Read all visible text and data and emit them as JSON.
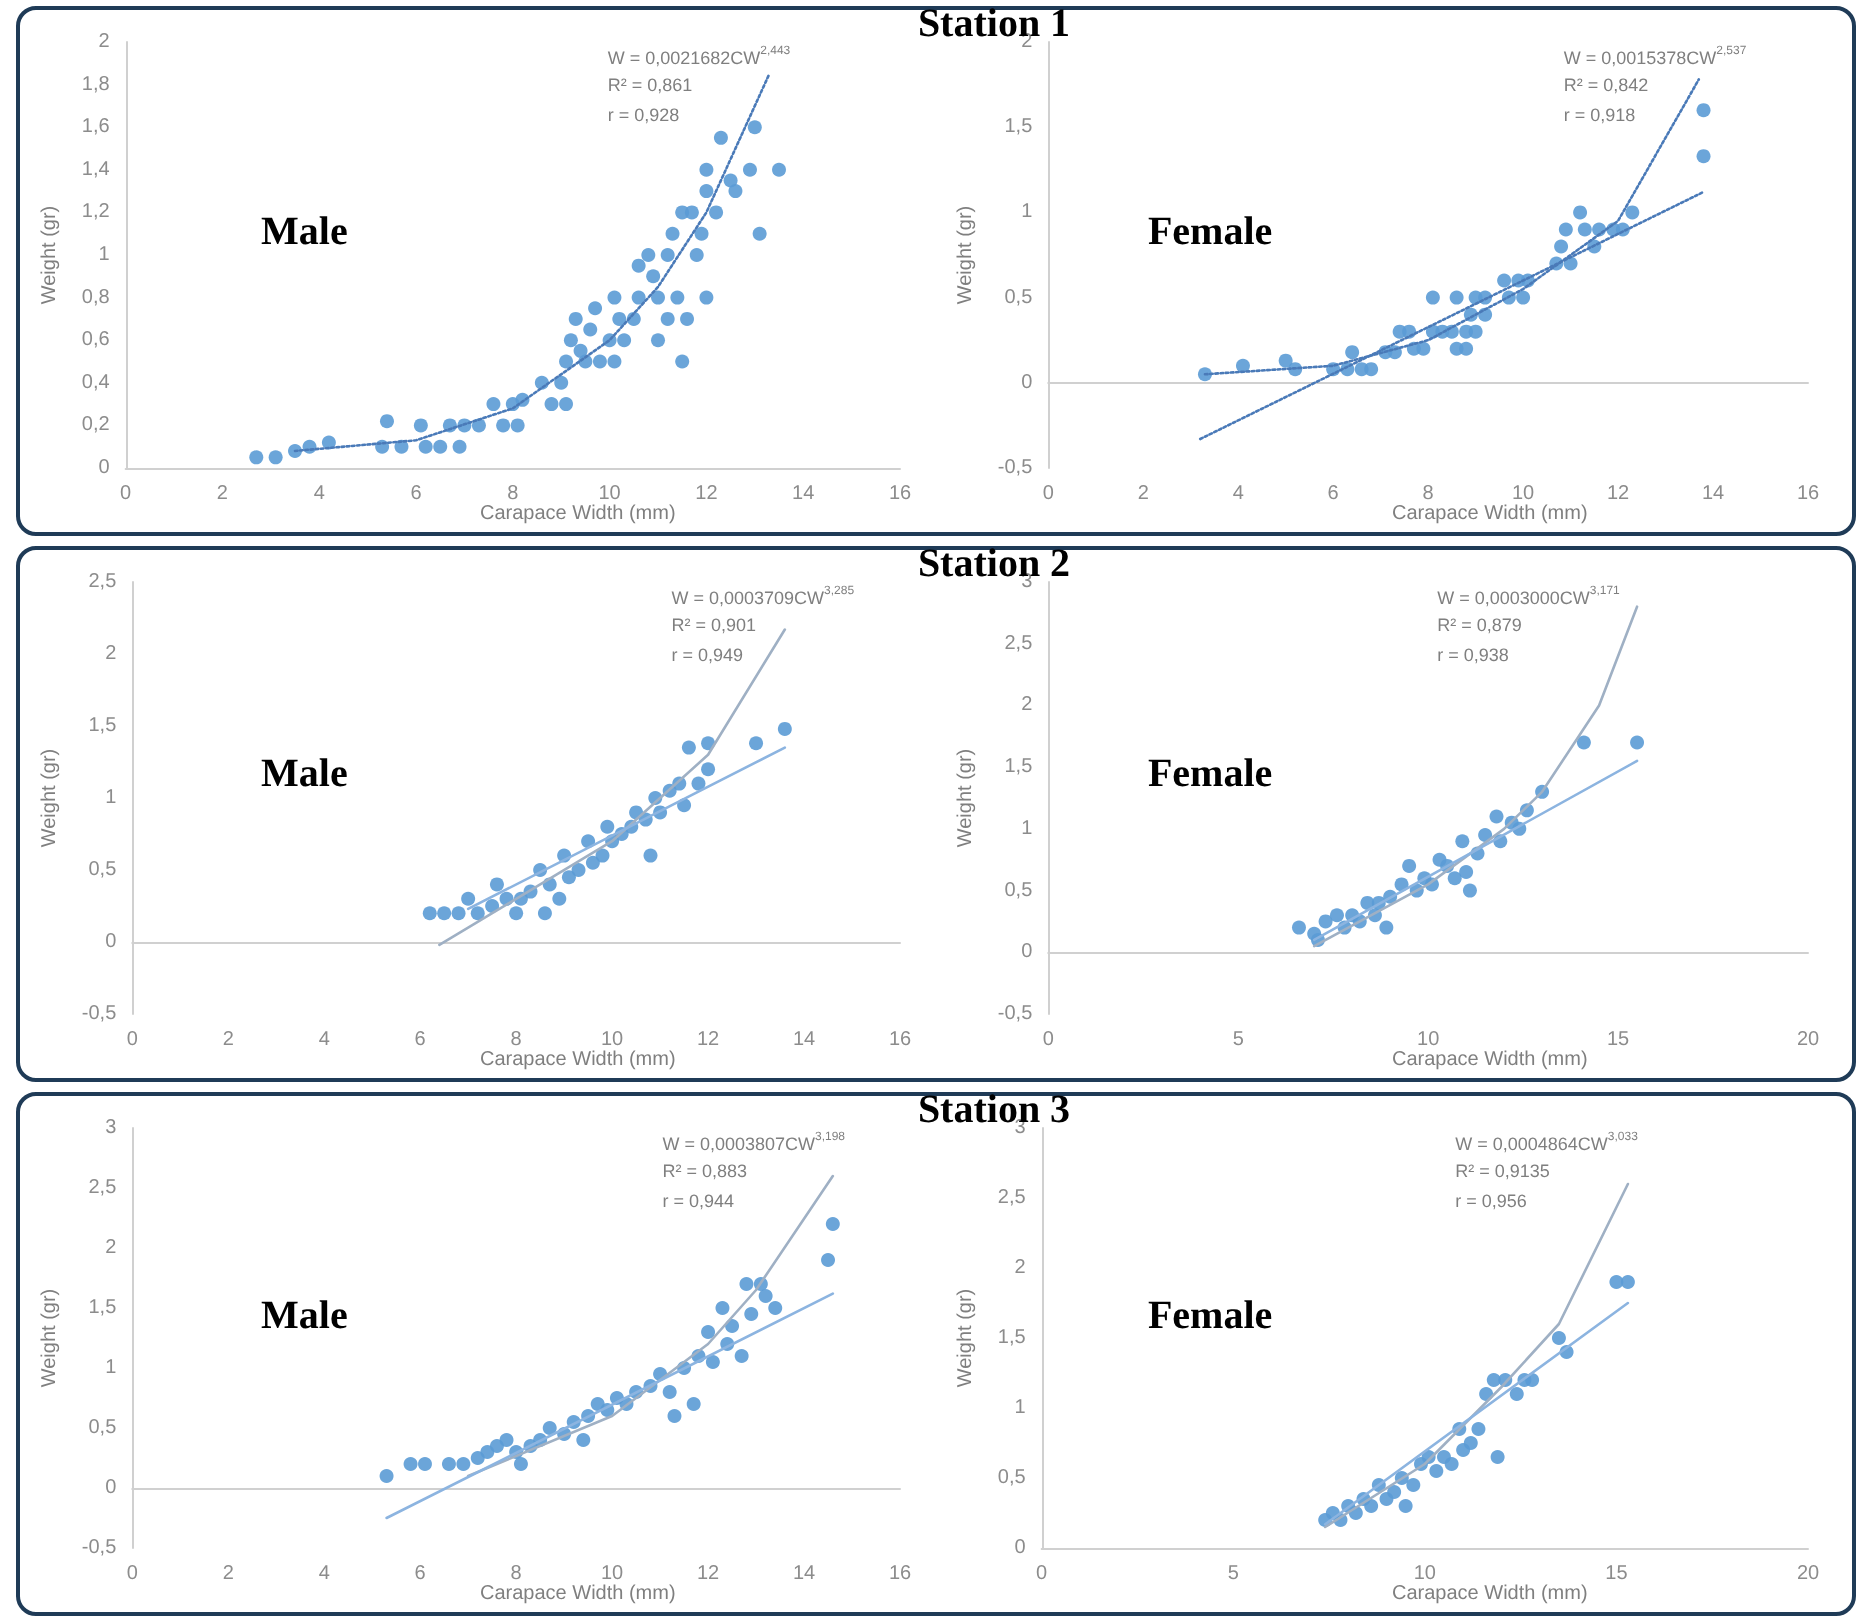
{
  "chart_data": [
    {
      "type": "scatter",
      "title": "Station 1",
      "xlabel": "Carapace Width (mm)",
      "ylabel": "Weight (gr)",
      "grid": false,
      "xlim": [
        0,
        16
      ],
      "xticks": [
        0,
        2,
        4,
        6,
        8,
        10,
        12,
        14,
        16
      ],
      "ylim": [
        0,
        2
      ],
      "yticks": [
        0,
        {
          "value": 0.2,
          "label": "0,2"
        },
        {
          "value": 0.4,
          "label": "0,4"
        },
        {
          "value": 0.6,
          "label": "0,6"
        },
        {
          "value": 0.8,
          "label": "0,8"
        },
        1,
        {
          "value": 1.2,
          "label": "1,2"
        },
        {
          "value": 1.4,
          "label": "1,4"
        },
        {
          "value": 1.6,
          "label": "1,6"
        },
        {
          "value": 1.8,
          "label": "1,8"
        },
        2
      ],
      "annotations": [
        "Male",
        "W = 0,0021682CW$^{2,443}$",
        "R² = 0,861",
        "r = 0,928"
      ],
      "series": [
        {
          "color": "#5b9bd5",
          "marker": "circle",
          "x": [
            2.7,
            3.1,
            3.5,
            3.8,
            4.2,
            5.3,
            5.4,
            5.7,
            6.1,
            6.2,
            6.5,
            6.7,
            6.9,
            7.0,
            7.3,
            7.6,
            7.8,
            8.0,
            8.1,
            8.2,
            8.6,
            8.8,
            9.0,
            9.1,
            9.1,
            9.2,
            9.3,
            9.4,
            9.5,
            9.6,
            9.7,
            9.8,
            10.0,
            10.1,
            10.2,
            10.1,
            10.3,
            10.5,
            10.6,
            10.6,
            10.8,
            10.9,
            11.0,
            11.0,
            11.2,
            11.2,
            11.3,
            11.4,
            11.5,
            11.5,
            11.6,
            11.7,
            11.8,
            11.9,
            12.0,
            12.0,
            12.0,
            12.2,
            12.3,
            12.5,
            12.6,
            12.9,
            13.0,
            13.1,
            13.5
          ],
          "values": [
            0.05,
            0.05,
            0.08,
            0.1,
            0.12,
            0.1,
            0.22,
            0.1,
            0.2,
            0.1,
            0.1,
            0.2,
            0.1,
            0.2,
            0.2,
            0.3,
            0.2,
            0.3,
            0.2,
            0.32,
            0.4,
            0.3,
            0.4,
            0.3,
            0.5,
            0.6,
            0.7,
            0.55,
            0.5,
            0.65,
            0.75,
            0.5,
            0.6,
            0.8,
            0.7,
            0.5,
            0.6,
            0.7,
            0.8,
            0.95,
            1.0,
            0.9,
            0.6,
            0.8,
            0.7,
            1.0,
            1.1,
            0.8,
            0.5,
            1.2,
            0.7,
            1.2,
            1.0,
            1.1,
            1.3,
            1.4,
            0.8,
            1.2,
            1.55,
            1.35,
            1.3,
            1.4,
            1.6,
            1.1,
            1.4
          ]
        },
        {
          "type": "line",
          "color": "#4a7ab8",
          "line_style": "dotted",
          "x": [
            3.5,
            6,
            8,
            10,
            11,
            12,
            13.3
          ],
          "values": [
            0.08,
            0.13,
            0.28,
            0.6,
            0.85,
            1.2,
            1.85
          ]
        }
      ]
    },
    {
      "type": "scatter",
      "xlabel": "Carapace Width (mm)",
      "ylabel": "Weight (gr)",
      "xlim": [
        0,
        16
      ],
      "xticks": [
        0,
        2,
        4,
        6,
        8,
        10,
        12,
        14,
        16
      ],
      "ylim": [
        -0.5,
        2
      ],
      "yticks": [
        {
          "value": -0.5,
          "label": "-0,5"
        },
        0,
        {
          "value": 0.5,
          "label": "0,5"
        },
        1,
        {
          "value": 1.5,
          "label": "1,5"
        },
        2
      ],
      "annotations": [
        "Female",
        "W = 0,0015378CW$^{2,537}$",
        "R² = 0,842",
        "r = 0,918"
      ],
      "series": [
        {
          "color": "#5b9bd5",
          "marker": "circle",
          "x": [
            3.3,
            4.1,
            5.0,
            5.2,
            6.0,
            6.3,
            6.4,
            6.6,
            6.8,
            7.1,
            7.3,
            7.4,
            7.6,
            7.7,
            7.9,
            8.1,
            8.1,
            8.3,
            8.5,
            8.6,
            8.6,
            8.8,
            8.8,
            8.9,
            9.0,
            9.0,
            9.2,
            9.2,
            9.6,
            9.7,
            9.9,
            10.0,
            10.1,
            10.7,
            10.8,
            10.9,
            11.0,
            11.2,
            11.3,
            11.5,
            11.6,
            11.9,
            12.1,
            12.3,
            13.8,
            13.8
          ],
          "values": [
            0.05,
            0.1,
            0.13,
            0.08,
            0.08,
            0.08,
            0.18,
            0.08,
            0.08,
            0.18,
            0.18,
            0.3,
            0.3,
            0.2,
            0.2,
            0.5,
            0.3,
            0.3,
            0.3,
            0.5,
            0.2,
            0.2,
            0.3,
            0.4,
            0.5,
            0.3,
            0.5,
            0.4,
            0.6,
            0.5,
            0.6,
            0.5,
            0.6,
            0.7,
            0.8,
            0.9,
            0.7,
            1.0,
            0.9,
            0.8,
            0.9,
            0.9,
            0.9,
            1.0,
            1.6,
            1.33
          ]
        },
        {
          "type": "line",
          "color": "#4a7ab8",
          "line_style": "dotted",
          "x": [
            3.3,
            6,
            8,
            10,
            12,
            13.7
          ],
          "values": [
            0.05,
            0.1,
            0.25,
            0.55,
            0.95,
            1.78
          ]
        },
        {
          "type": "line",
          "color": "#4a7ab8",
          "line_style": "dotted",
          "x": [
            3.2,
            13.8
          ],
          "values": [
            -0.33,
            1.12
          ]
        }
      ]
    },
    {
      "type": "scatter",
      "title": "Station 2",
      "xlabel": "Carapace Width (mm)",
      "ylabel": "Weight (gr)",
      "xlim": [
        0,
        16
      ],
      "xticks": [
        0,
        2,
        4,
        6,
        8,
        10,
        12,
        14,
        16
      ],
      "ylim": [
        -0.5,
        2.5
      ],
      "yticks": [
        {
          "value": -0.5,
          "label": "-0,5"
        },
        0,
        {
          "value": 0.5,
          "label": "0,5"
        },
        1,
        {
          "value": 1.5,
          "label": "1,5"
        },
        2,
        {
          "value": 2.5,
          "label": "2,5"
        }
      ],
      "annotations": [
        "Male",
        "W = 0,0003709CW$^{3,285}$",
        "R² = 0,901",
        "r = 0,949"
      ],
      "series": [
        {
          "color": "#5b9bd5",
          "marker": "circle",
          "x": [
            6.2,
            6.5,
            6.8,
            7.0,
            7.2,
            7.5,
            7.6,
            7.8,
            8.0,
            8.1,
            8.3,
            8.5,
            8.6,
            8.7,
            8.9,
            9.0,
            9.1,
            9.3,
            9.5,
            9.6,
            9.8,
            9.9,
            10.0,
            10.2,
            10.4,
            10.5,
            10.7,
            10.8,
            10.9,
            11.0,
            11.2,
            11.4,
            11.5,
            11.6,
            11.8,
            12.0,
            12.0,
            13.0,
            13.6
          ],
          "values": [
            0.2,
            0.2,
            0.2,
            0.3,
            0.2,
            0.25,
            0.4,
            0.3,
            0.2,
            0.3,
            0.35,
            0.5,
            0.2,
            0.4,
            0.3,
            0.6,
            0.45,
            0.5,
            0.7,
            0.55,
            0.6,
            0.8,
            0.7,
            0.75,
            0.8,
            0.9,
            0.85,
            0.6,
            1.0,
            0.9,
            1.05,
            1.1,
            0.95,
            1.35,
            1.1,
            1.2,
            1.38,
            1.38,
            1.48
          ]
        },
        {
          "type": "line",
          "color": "#9fb0c4",
          "line_style": "solid",
          "x": [
            6.4,
            8,
            10,
            12,
            13.6
          ],
          "values": [
            -0.02,
            0.3,
            0.7,
            1.3,
            2.17
          ]
        },
        {
          "type": "line",
          "color": "#8cb4e0",
          "line_style": "solid",
          "x": [
            7,
            13.6
          ],
          "values": [
            0.23,
            1.35
          ]
        }
      ]
    },
    {
      "type": "scatter",
      "xlabel": "Carapace Width (mm)",
      "ylabel": "Weight (gr)",
      "xlim": [
        0,
        20
      ],
      "xticks": [
        0,
        5,
        10,
        15,
        20
      ],
      "ylim": [
        -0.5,
        3
      ],
      "yticks": [
        {
          "value": -0.5,
          "label": "-0,5"
        },
        0,
        {
          "value": 0.5,
          "label": "0,5"
        },
        1,
        {
          "value": 1.5,
          "label": "1,5"
        },
        2,
        {
          "value": 2.5,
          "label": "2,5"
        },
        3
      ],
      "annotations": [
        "Female",
        "W = 0,0003000CW$^{3,171}$",
        "R² = 0,879",
        "r = 0,938"
      ],
      "series": [
        {
          "color": "#5b9bd5",
          "marker": "circle",
          "x": [
            6.6,
            7.0,
            7.1,
            7.3,
            7.6,
            7.8,
            8.0,
            8.2,
            8.4,
            8.6,
            8.7,
            8.9,
            9.0,
            9.3,
            9.5,
            9.7,
            9.9,
            10.1,
            10.3,
            10.5,
            10.7,
            10.9,
            11.0,
            11.1,
            11.3,
            11.5,
            11.8,
            11.9,
            12.2,
            12.4,
            12.6,
            13.0,
            14.1,
            15.5
          ],
          "values": [
            0.2,
            0.15,
            0.1,
            0.25,
            0.3,
            0.2,
            0.3,
            0.25,
            0.4,
            0.3,
            0.4,
            0.2,
            0.45,
            0.55,
            0.7,
            0.5,
            0.6,
            0.55,
            0.75,
            0.7,
            0.6,
            0.9,
            0.65,
            0.5,
            0.8,
            0.95,
            1.1,
            0.9,
            1.05,
            1.0,
            1.15,
            1.3,
            1.7,
            1.7
          ]
        },
        {
          "type": "line",
          "color": "#9fb0c4",
          "line_style": "solid",
          "x": [
            7,
            10,
            12,
            13,
            14.5,
            15.5
          ],
          "values": [
            0.05,
            0.55,
            1.0,
            1.3,
            2.0,
            2.8
          ]
        },
        {
          "type": "line",
          "color": "#8cb4e0",
          "line_style": "solid",
          "x": [
            7,
            15.5
          ],
          "values": [
            0.1,
            1.55
          ]
        }
      ]
    },
    {
      "type": "scatter",
      "title": "Station 3",
      "xlabel": "Carapace Width (mm)",
      "ylabel": "Weight (gr)",
      "xlim": [
        0,
        16
      ],
      "xticks": [
        0,
        2,
        4,
        6,
        8,
        10,
        12,
        14,
        16
      ],
      "ylim": [
        -0.5,
        3
      ],
      "yticks": [
        {
          "value": -0.5,
          "label": "-0,5"
        },
        0,
        {
          "value": 0.5,
          "label": "0,5"
        },
        1,
        {
          "value": 1.5,
          "label": "1,5"
        },
        2,
        {
          "value": 2.5,
          "label": "2,5"
        },
        3
      ],
      "annotations": [
        "Male",
        "W = 0,0003807CW$^{3,198}$",
        "R² = 0,883",
        "r = 0,944"
      ],
      "series": [
        {
          "color": "#5b9bd5",
          "marker": "circle",
          "x": [
            5.3,
            5.8,
            6.1,
            6.6,
            6.9,
            7.2,
            7.4,
            7.6,
            7.8,
            8.0,
            8.1,
            8.3,
            8.5,
            8.7,
            9.0,
            9.2,
            9.4,
            9.5,
            9.7,
            9.9,
            10.1,
            10.3,
            10.5,
            10.8,
            11.0,
            11.2,
            11.3,
            11.5,
            11.7,
            11.8,
            12.0,
            12.1,
            12.3,
            12.4,
            12.5,
            12.7,
            12.8,
            12.9,
            13.1,
            13.2,
            13.4,
            14.5,
            14.6
          ],
          "values": [
            0.1,
            0.2,
            0.2,
            0.2,
            0.2,
            0.25,
            0.3,
            0.35,
            0.4,
            0.3,
            0.2,
            0.35,
            0.4,
            0.5,
            0.45,
            0.55,
            0.4,
            0.6,
            0.7,
            0.65,
            0.75,
            0.7,
            0.8,
            0.85,
            0.95,
            0.8,
            0.6,
            1.0,
            0.7,
            1.1,
            1.3,
            1.05,
            1.5,
            1.2,
            1.35,
            1.1,
            1.7,
            1.45,
            1.7,
            1.6,
            1.5,
            1.9,
            2.2
          ]
        },
        {
          "type": "line",
          "color": "#9fb0c4",
          "line_style": "solid",
          "x": [
            7,
            10,
            12,
            13,
            14.6
          ],
          "values": [
            0.1,
            0.6,
            1.2,
            1.65,
            2.6
          ]
        },
        {
          "type": "line",
          "color": "#8cb4e0",
          "line_style": "solid",
          "x": [
            5.3,
            14.6
          ],
          "values": [
            -0.25,
            1.62
          ]
        }
      ]
    },
    {
      "type": "scatter",
      "xlabel": "Carapace Width (mm)",
      "ylabel": "Weight (gr)",
      "grid": false,
      "xlim": [
        0,
        20
      ],
      "xticks": [
        0,
        5,
        10,
        15,
        20
      ],
      "ylim": [
        0,
        3
      ],
      "yticks": [
        0,
        {
          "value": 0.5,
          "label": "0,5"
        },
        1,
        {
          "value": 1.5,
          "label": "1,5"
        },
        2,
        {
          "value": 2.5,
          "label": "2,5"
        },
        3
      ],
      "annotations": [
        "Female",
        "W = 0,0004864CW$^{3,033}$",
        "R² = 0,9135",
        "r = 0,956"
      ],
      "series": [
        {
          "color": "#5b9bd5",
          "marker": "circle",
          "x": [
            7.4,
            7.6,
            7.8,
            8.0,
            8.2,
            8.4,
            8.6,
            8.8,
            9.0,
            9.2,
            9.4,
            9.5,
            9.7,
            9.9,
            10.1,
            10.3,
            10.5,
            10.7,
            10.9,
            11.0,
            11.2,
            11.4,
            11.6,
            11.8,
            11.9,
            12.1,
            12.4,
            12.6,
            12.8,
            13.5,
            13.7,
            15.0,
            15.3
          ],
          "values": [
            0.2,
            0.25,
            0.2,
            0.3,
            0.25,
            0.35,
            0.3,
            0.45,
            0.35,
            0.4,
            0.5,
            0.3,
            0.45,
            0.6,
            0.65,
            0.55,
            0.65,
            0.6,
            0.85,
            0.7,
            0.75,
            0.85,
            1.1,
            1.2,
            0.65,
            1.2,
            1.1,
            1.2,
            1.2,
            1.5,
            1.4,
            1.9,
            1.9
          ]
        },
        {
          "type": "line",
          "color": "#9fb0c4",
          "line_style": "solid",
          "x": [
            7.4,
            10,
            12,
            13.5,
            15.3
          ],
          "values": [
            0.15,
            0.6,
            1.15,
            1.6,
            2.6
          ]
        },
        {
          "type": "line",
          "color": "#8cb4e0",
          "line_style": "solid",
          "x": [
            7.4,
            15.3
          ],
          "values": [
            0.17,
            1.75
          ]
        }
      ]
    }
  ]
}
